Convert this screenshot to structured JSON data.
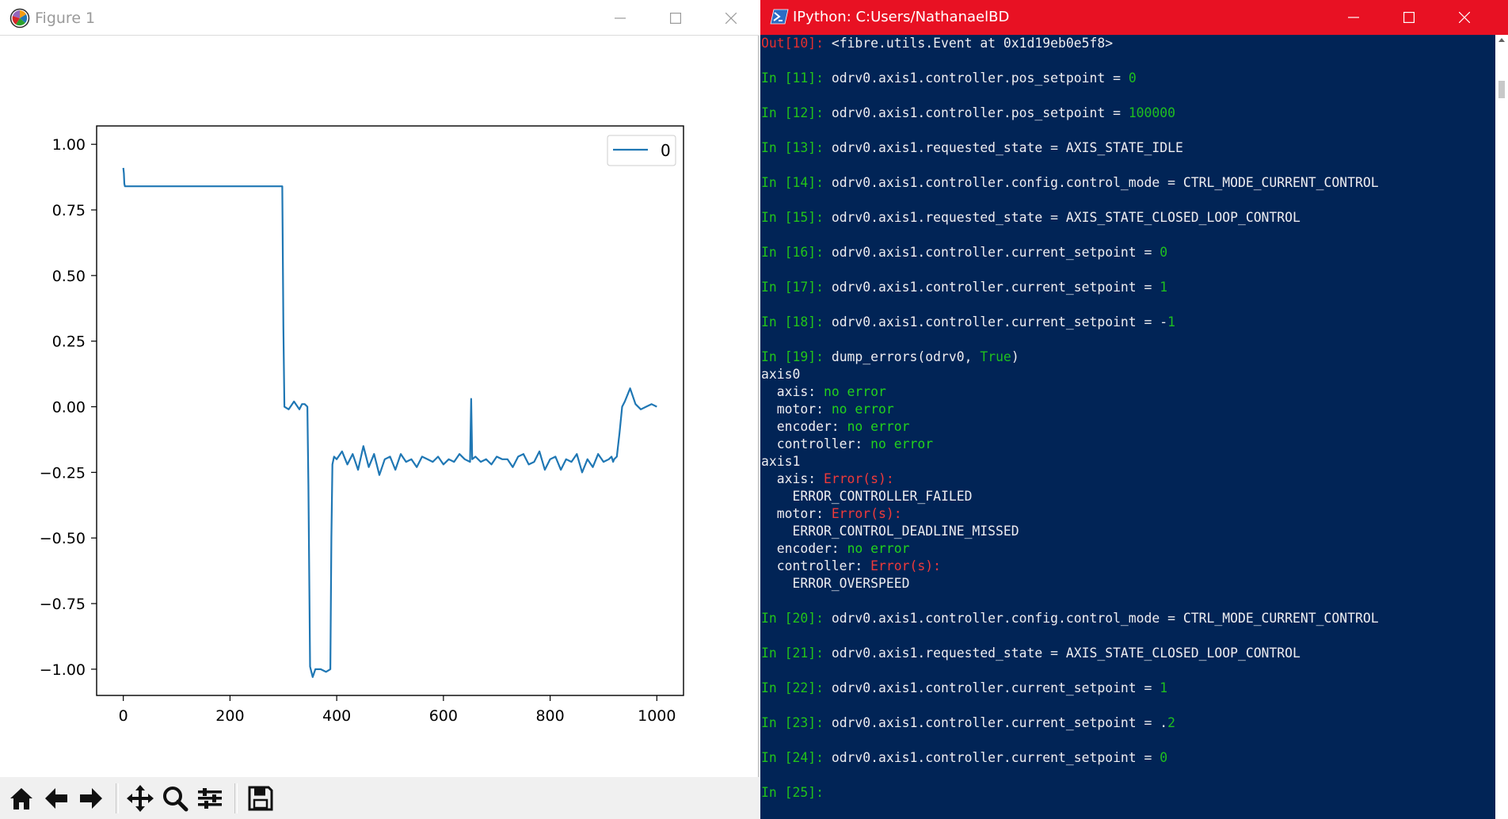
{
  "figure_window": {
    "title": "Figure 1",
    "controls": {
      "minimize": "minimize",
      "maximize": "maximize",
      "close": "close"
    },
    "toolbar": [
      "home-icon",
      "back-arrow-icon",
      "forward-arrow-icon",
      "pan-icon",
      "zoom-icon",
      "subplots-icon",
      "save-icon"
    ]
  },
  "chart_data": {
    "type": "line",
    "title": "",
    "xlabel": "",
    "ylabel": "",
    "xlim": [
      -50,
      1050
    ],
    "ylim": [
      -1.1,
      1.07
    ],
    "grid": false,
    "legend_position": "top-right",
    "x_ticks": [
      0,
      200,
      400,
      600,
      800,
      1000
    ],
    "x_tick_labels": [
      "0",
      "200",
      "400",
      "600",
      "800",
      "1000"
    ],
    "y_ticks": [
      1.0,
      0.75,
      0.5,
      0.25,
      0.0,
      -0.25,
      -0.5,
      -0.75,
      -1.0
    ],
    "y_tick_labels": [
      "1.00",
      "0.75",
      "0.50",
      "0.25",
      "0.00",
      "−0.25",
      "−0.50",
      "−0.75",
      "−1.00"
    ],
    "line_color": "#1f77b4",
    "series": [
      {
        "name": "0",
        "x": [
          0,
          1,
          2,
          3,
          298,
          300,
          302,
          310,
          320,
          330,
          335,
          340,
          345,
          347,
          350,
          355,
          360,
          370,
          380,
          388,
          390,
          392,
          395,
          400,
          410,
          420,
          430,
          440,
          450,
          460,
          470,
          480,
          490,
          500,
          510,
          520,
          530,
          540,
          550,
          560,
          570,
          580,
          590,
          600,
          610,
          620,
          630,
          640,
          650,
          652,
          654,
          660,
          670,
          680,
          690,
          700,
          710,
          720,
          730,
          740,
          750,
          760,
          770,
          780,
          790,
          800,
          810,
          820,
          830,
          840,
          850,
          860,
          870,
          880,
          890,
          900,
          910,
          915,
          918,
          920,
          925,
          930,
          935,
          940,
          950,
          960,
          970,
          980,
          990,
          1000
        ],
        "values": [
          0.91,
          0.89,
          0.85,
          0.84,
          0.84,
          0.3,
          0.0,
          -0.01,
          0.02,
          -0.01,
          0.01,
          0.01,
          0.0,
          -0.3,
          -0.99,
          -1.03,
          -1.0,
          -1.0,
          -1.01,
          -1.0,
          -0.5,
          -0.22,
          -0.19,
          -0.2,
          -0.17,
          -0.22,
          -0.18,
          -0.24,
          -0.15,
          -0.23,
          -0.18,
          -0.26,
          -0.2,
          -0.19,
          -0.24,
          -0.18,
          -0.21,
          -0.2,
          -0.23,
          -0.19,
          -0.2,
          -0.21,
          -0.19,
          -0.22,
          -0.2,
          -0.21,
          -0.18,
          -0.2,
          -0.21,
          0.03,
          -0.2,
          -0.19,
          -0.21,
          -0.2,
          -0.22,
          -0.19,
          -0.2,
          -0.2,
          -0.23,
          -0.19,
          -0.18,
          -0.22,
          -0.21,
          -0.17,
          -0.24,
          -0.2,
          -0.19,
          -0.24,
          -0.2,
          -0.21,
          -0.18,
          -0.25,
          -0.2,
          -0.23,
          -0.18,
          -0.21,
          -0.2,
          -0.19,
          -0.21,
          -0.2,
          -0.19,
          -0.1,
          0.0,
          0.02,
          0.07,
          0.01,
          -0.01,
          0.0,
          0.01,
          0.0
        ]
      }
    ]
  },
  "console_window": {
    "title": "IPython: C:Users/NathanaelBD",
    "controls": {
      "minimize": "minimize",
      "maximize": "maximize",
      "close": "close"
    },
    "lines": [
      {
        "prompt_type": "out",
        "prompt": "Out[10]:",
        "segments": [
          [
            "plain",
            " <fibre.utils.Event at 0x1d19eb0e5f8>"
          ]
        ]
      },
      {
        "prompt_type": "in",
        "prompt": "In [11]:",
        "segments": [
          [
            "plain",
            " odrv0.axis1.controller.pos_setpoint = "
          ],
          [
            "num",
            "0"
          ]
        ]
      },
      {
        "prompt_type": "in",
        "prompt": "In [12]:",
        "segments": [
          [
            "plain",
            " odrv0.axis1.controller.pos_setpoint = "
          ],
          [
            "num",
            "100000"
          ]
        ]
      },
      {
        "prompt_type": "in",
        "prompt": "In [13]:",
        "segments": [
          [
            "plain",
            " odrv0.axis1.requested_state = AXIS_STATE_IDLE"
          ]
        ]
      },
      {
        "prompt_type": "in",
        "prompt": "In [14]:",
        "segments": [
          [
            "plain",
            " odrv0.axis1.controller.config.control_mode = CTRL_MODE_CURRENT_CONTROL"
          ]
        ]
      },
      {
        "prompt_type": "in",
        "prompt": "In [15]:",
        "segments": [
          [
            "plain",
            " odrv0.axis1.requested_state = AXIS_STATE_CLOSED_LOOP_CONTROL"
          ]
        ]
      },
      {
        "prompt_type": "in",
        "prompt": "In [16]:",
        "segments": [
          [
            "plain",
            " odrv0.axis1.controller.current_setpoint = "
          ],
          [
            "num",
            "0"
          ]
        ]
      },
      {
        "prompt_type": "in",
        "prompt": "In [17]:",
        "segments": [
          [
            "plain",
            " odrv0.axis1.controller.current_setpoint = "
          ],
          [
            "num",
            "1"
          ]
        ]
      },
      {
        "prompt_type": "in",
        "prompt": "In [18]:",
        "segments": [
          [
            "plain",
            " odrv0.axis1.controller.current_setpoint = -"
          ],
          [
            "num",
            "1"
          ]
        ]
      },
      {
        "prompt_type": "in",
        "prompt": "In [19]:",
        "segments": [
          [
            "plain",
            " dump_errors(odrv0, "
          ],
          [
            "kw",
            "True"
          ],
          [
            "plain",
            ")"
          ]
        ]
      },
      {
        "prompt_type": "none",
        "prompt": "",
        "segments": [
          [
            "plain",
            "axis0"
          ]
        ]
      },
      {
        "prompt_type": "none",
        "prompt": "",
        "segments": [
          [
            "plain",
            "  axis: "
          ],
          [
            "ok",
            "no error"
          ]
        ]
      },
      {
        "prompt_type": "none",
        "prompt": "",
        "segments": [
          [
            "plain",
            "  motor: "
          ],
          [
            "ok",
            "no error"
          ]
        ]
      },
      {
        "prompt_type": "none",
        "prompt": "",
        "segments": [
          [
            "plain",
            "  encoder: "
          ],
          [
            "ok",
            "no error"
          ]
        ]
      },
      {
        "prompt_type": "none",
        "prompt": "",
        "segments": [
          [
            "plain",
            "  controller: "
          ],
          [
            "ok",
            "no error"
          ]
        ]
      },
      {
        "prompt_type": "none",
        "prompt": "",
        "segments": [
          [
            "plain",
            "axis1"
          ]
        ]
      },
      {
        "prompt_type": "none",
        "prompt": "",
        "segments": [
          [
            "plain",
            "  axis: "
          ],
          [
            "err",
            "Error(s):"
          ]
        ]
      },
      {
        "prompt_type": "none",
        "prompt": "",
        "segments": [
          [
            "plain",
            "    ERROR_CONTROLLER_FAILED"
          ]
        ]
      },
      {
        "prompt_type": "none",
        "prompt": "",
        "segments": [
          [
            "plain",
            "  motor: "
          ],
          [
            "err",
            "Error(s):"
          ]
        ]
      },
      {
        "prompt_type": "none",
        "prompt": "",
        "segments": [
          [
            "plain",
            "    ERROR_CONTROL_DEADLINE_MISSED"
          ]
        ]
      },
      {
        "prompt_type": "none",
        "prompt": "",
        "segments": [
          [
            "plain",
            "  encoder: "
          ],
          [
            "ok",
            "no error"
          ]
        ]
      },
      {
        "prompt_type": "none",
        "prompt": "",
        "segments": [
          [
            "plain",
            "  controller: "
          ],
          [
            "err",
            "Error(s):"
          ]
        ]
      },
      {
        "prompt_type": "none",
        "prompt": "",
        "segments": [
          [
            "plain",
            "    ERROR_OVERSPEED"
          ]
        ]
      },
      {
        "prompt_type": "in",
        "prompt": "In [20]:",
        "segments": [
          [
            "plain",
            " odrv0.axis1.controller.config.control_mode = CTRL_MODE_CURRENT_CONTROL"
          ]
        ]
      },
      {
        "prompt_type": "in",
        "prompt": "In [21]:",
        "segments": [
          [
            "plain",
            " odrv0.axis1.requested_state = AXIS_STATE_CLOSED_LOOP_CONTROL"
          ]
        ]
      },
      {
        "prompt_type": "in",
        "prompt": "In [22]:",
        "segments": [
          [
            "plain",
            " odrv0.axis1.controller.current_setpoint = "
          ],
          [
            "num",
            "1"
          ]
        ]
      },
      {
        "prompt_type": "in",
        "prompt": "In [23]:",
        "segments": [
          [
            "plain",
            " odrv0.axis1.controller.current_setpoint = ."
          ],
          [
            "num",
            "2"
          ]
        ]
      },
      {
        "prompt_type": "in",
        "prompt": "In [24]:",
        "segments": [
          [
            "plain",
            " odrv0.axis1.controller.current_setpoint = "
          ],
          [
            "num",
            "0"
          ]
        ]
      },
      {
        "prompt_type": "in",
        "prompt": "In [25]:",
        "segments": [
          [
            "plain",
            ""
          ]
        ]
      }
    ]
  },
  "colors": {
    "console_background": "#012456",
    "console_titlebar": "#e81123",
    "prompt_in": "#22c31a",
    "prompt_out": "#e52e2e",
    "ok_text": "#23d11d",
    "error_text": "#f03a3a"
  }
}
